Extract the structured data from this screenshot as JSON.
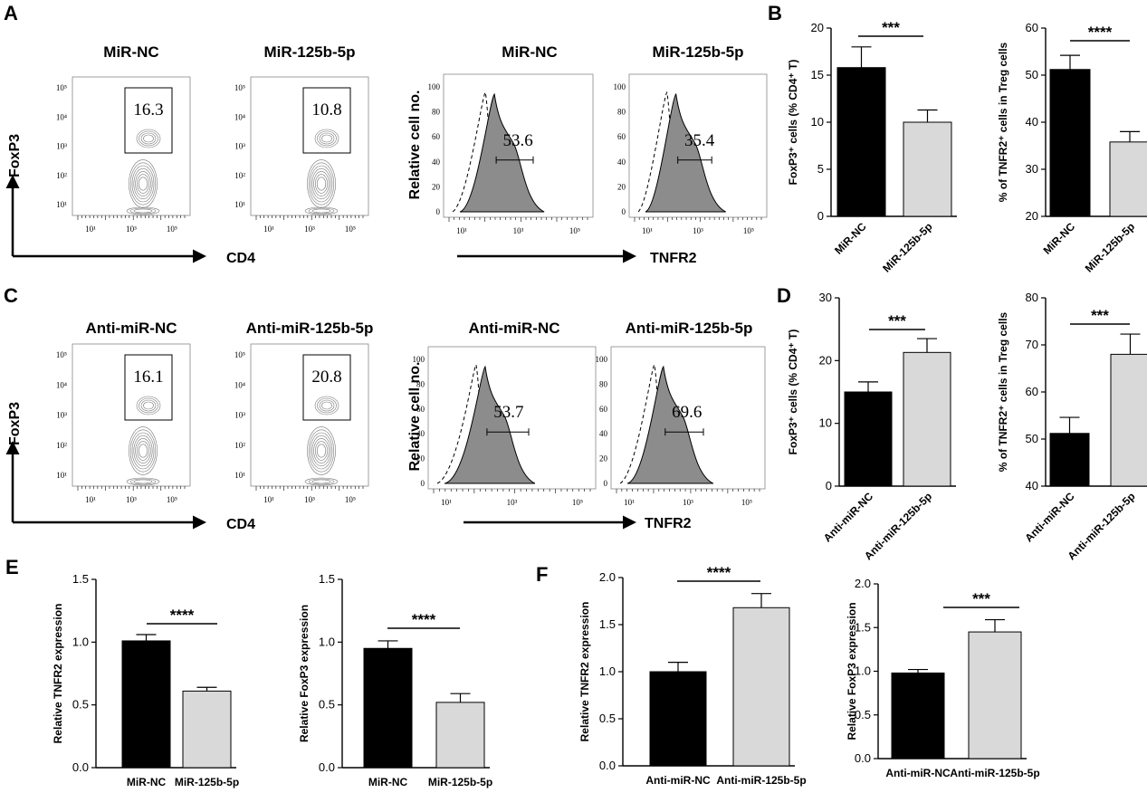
{
  "panel_labels": [
    "A",
    "B",
    "C",
    "D",
    "E",
    "F"
  ],
  "flow_axes": {
    "foxp3": "FoxP3",
    "cd4": "CD4",
    "relative_cell_no": "Relative cell no.",
    "tnfr2": "TNFR2"
  },
  "flow_tick_labels": {
    "log_y": [
      "10⁵",
      "10⁴",
      "10³",
      "10²",
      "10¹"
    ],
    "log_x": [
      "10¹",
      "10³",
      "10⁵"
    ],
    "hist_y": [
      "100",
      "80",
      "60",
      "40",
      "20",
      "0"
    ]
  },
  "flow_panels": [
    {
      "title": "MiR-NC",
      "kind": "contour",
      "value": "16.3"
    },
    {
      "title": "MiR-125b-5p",
      "kind": "contour",
      "value": "10.8"
    },
    {
      "title": "MiR-NC",
      "kind": "histogram",
      "value": "53.6"
    },
    {
      "title": "MiR-125b-5p",
      "kind": "histogram",
      "value": "35.4"
    },
    {
      "title": "Anti-miR-NC",
      "kind": "contour",
      "value": "16.1"
    },
    {
      "title": "Anti-miR-125b-5p",
      "kind": "contour",
      "value": "20.8"
    },
    {
      "title": "Anti-miR-NC",
      "kind": "histogram",
      "value": "53.7"
    },
    {
      "title": "Anti-miR-125b-5p",
      "kind": "histogram",
      "value": "69.6"
    }
  ],
  "colors": {
    "bar_dark": "#000000",
    "bar_light": "#d9d9d9"
  },
  "chart_data": [
    {
      "type": "bar",
      "panel": "B",
      "categories": [
        "MiR-NC",
        "MiR-125b-5p"
      ],
      "values": [
        15.8,
        10.0
      ],
      "errors": [
        2.2,
        1.3
      ],
      "ylabel": "FoxP3⁺ cells (% CD4⁺ T)",
      "ylim": [
        0,
        20
      ],
      "yticks": [
        "0",
        "5",
        "10",
        "15",
        "20"
      ],
      "significance": "***"
    },
    {
      "type": "bar",
      "panel": "B",
      "categories": [
        "MiR-NC",
        "MiR-125b-5p"
      ],
      "values": [
        51.2,
        35.8
      ],
      "errors": [
        3.0,
        2.2
      ],
      "ylabel": "% of TNFR2⁺ cells in Treg cells",
      "ylim": [
        20,
        60
      ],
      "yticks": [
        "20",
        "30",
        "40",
        "50",
        "60"
      ],
      "significance": "****"
    },
    {
      "type": "bar",
      "panel": "D",
      "categories": [
        "Anti-miR-NC",
        "Anti-miR-125b-5p"
      ],
      "values": [
        15.0,
        21.3
      ],
      "errors": [
        1.6,
        2.2
      ],
      "ylabel": "FoxP3⁺ cells (% CD4⁺ T)",
      "ylim": [
        0,
        30
      ],
      "yticks": [
        "0",
        "10",
        "20",
        "30"
      ],
      "significance": "***"
    },
    {
      "type": "bar",
      "panel": "D",
      "categories": [
        "Anti-miR-NC",
        "Anti-miR-125b-5p"
      ],
      "values": [
        51.2,
        68.0
      ],
      "errors": [
        3.4,
        4.3
      ],
      "ylabel": "% of TNFR2⁺ cells in Treg cells",
      "ylim": [
        40,
        80
      ],
      "yticks": [
        "40",
        "50",
        "60",
        "70",
        "80"
      ],
      "significance": "***"
    },
    {
      "type": "bar",
      "panel": "E",
      "categories": [
        "MiR-NC",
        "MiR-125b-5p"
      ],
      "values": [
        1.01,
        0.61
      ],
      "errors": [
        0.05,
        0.03
      ],
      "ylabel": "Relative TNFR2 expression",
      "ylim": [
        0,
        1.5
      ],
      "yticks": [
        "0.0",
        "0.5",
        "1.0",
        "1.5"
      ],
      "significance": "****"
    },
    {
      "type": "bar",
      "panel": "E",
      "categories": [
        "MiR-NC",
        "MiR-125b-5p"
      ],
      "values": [
        0.95,
        0.52
      ],
      "errors": [
        0.06,
        0.07
      ],
      "ylabel": "Relative FoxP3 expression",
      "ylim": [
        0,
        1.5
      ],
      "yticks": [
        "0.0",
        "0.5",
        "1.0",
        "1.5"
      ],
      "significance": "****"
    },
    {
      "type": "bar",
      "panel": "F",
      "categories": [
        "Anti-miR-NC",
        "Anti-miR-125b-5p"
      ],
      "values": [
        1.0,
        1.68
      ],
      "errors": [
        0.1,
        0.15
      ],
      "ylabel": "Relative TNFR2 expression",
      "ylim": [
        0,
        2.0
      ],
      "yticks": [
        "0.0",
        "0.5",
        "1.0",
        "1.5",
        "2.0"
      ],
      "significance": "****"
    },
    {
      "type": "bar",
      "panel": "F",
      "categories": [
        "Anti-miR-NC",
        "Anti-miR-125b-5p"
      ],
      "values": [
        0.98,
        1.45
      ],
      "errors": [
        0.04,
        0.14
      ],
      "ylabel": "Relative FoxP3 expression",
      "ylim": [
        0,
        2.0
      ],
      "yticks": [
        "0.0",
        "0.5",
        "1.0",
        "1.5",
        "2.0"
      ],
      "significance": "***"
    }
  ]
}
